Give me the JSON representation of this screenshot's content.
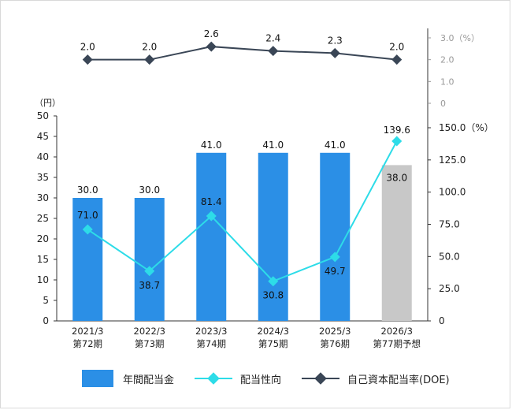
{
  "chart_data": {
    "type": "bar",
    "categories": [
      "2021/3",
      "2022/3",
      "2023/3",
      "2024/3",
      "2025/3",
      "2026/3"
    ],
    "period_labels": [
      "第72期",
      "第73期",
      "第74期",
      "第75期",
      "第76期",
      "第77期予想"
    ],
    "bar_values": [
      30.0,
      30.0,
      41.0,
      41.0,
      41.0,
      38.0
    ],
    "bar_colors": [
      "#2b8fe6",
      "#2b8fe6",
      "#2b8fe6",
      "#2b8fe6",
      "#2b8fe6",
      "#c8c8c8"
    ],
    "bar_labels": [
      "30.0",
      "30.0",
      "41.0",
      "41.0",
      "41.0",
      "38.0"
    ],
    "payout_values": [
      71.0,
      38.7,
      81.4,
      30.8,
      49.7,
      139.6
    ],
    "payout_labels": [
      "71.0",
      "38.7",
      "81.4",
      "30.8",
      "49.7",
      "139.6"
    ],
    "doe_values": [
      2.0,
      2.0,
      2.6,
      2.4,
      2.3,
      2.0
    ],
    "doe_labels": [
      "2.0",
      "2.0",
      "2.6",
      "2.4",
      "2.3",
      "2.0"
    ],
    "left_axis": {
      "unit": "（円）",
      "ylim": [
        0,
        50
      ],
      "ticks": [
        "0",
        "5",
        "10",
        "15",
        "20",
        "25",
        "30",
        "35",
        "40",
        "45",
        "50"
      ]
    },
    "right_axis_payout": {
      "ylim": [
        0,
        150
      ],
      "ticks": [
        "0",
        "25.0",
        "50.0",
        "75.0",
        "100.0",
        "125.0",
        "150.0（%）"
      ]
    },
    "right_axis_doe": {
      "ylim": [
        0,
        3
      ],
      "ticks": [
        "0",
        "1.0",
        "2.0",
        "3.0（%）"
      ]
    },
    "series": [
      {
        "name": "年間配当金",
        "color": "#2b8fe6"
      },
      {
        "name": "配当性向",
        "color": "#2ddce8"
      },
      {
        "name": "自己資本配当率(DOE)",
        "color": "#3a4656"
      }
    ],
    "legend_position": "bottom",
    "grid": false
  }
}
